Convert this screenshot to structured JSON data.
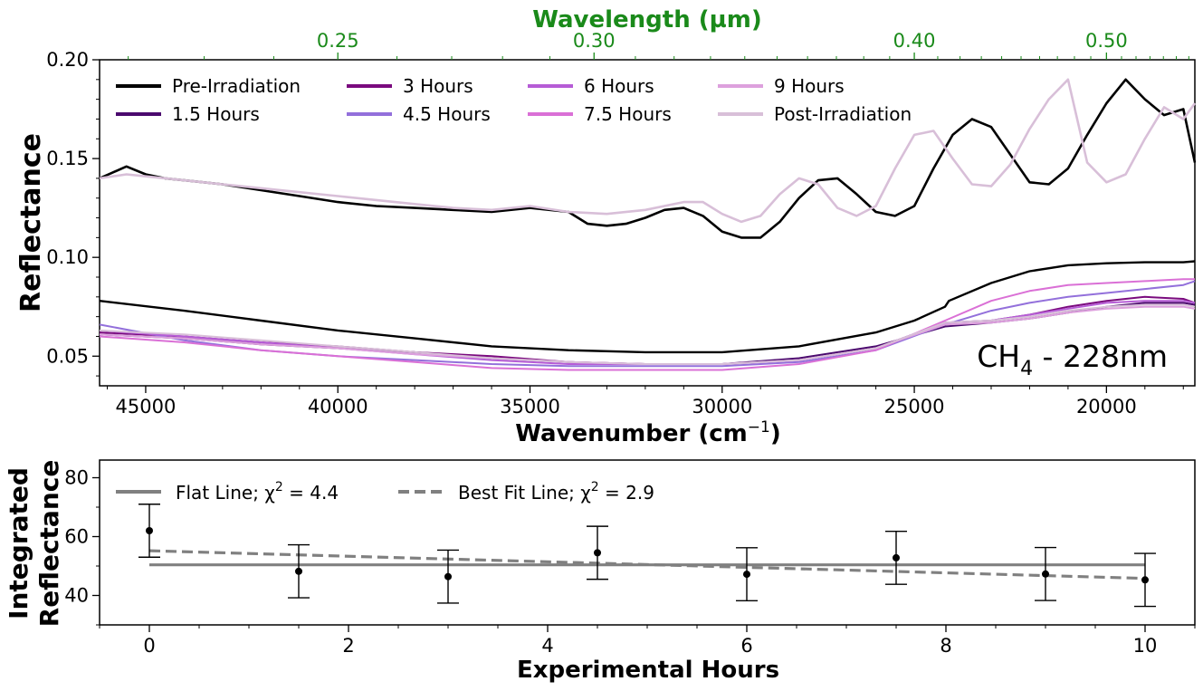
{
  "chart_data": [
    {
      "type": "line",
      "title": "",
      "xlabel": "Wavenumber (cm",
      "xlabel_sup": "−1",
      "xlabel_end": ")",
      "ylabel": "Reflectance",
      "top_axis_label": "Wavelength (µm)",
      "top_ticks": [
        {
          "label": "0.25",
          "um": 0.25
        },
        {
          "label": "0.30",
          "um": 0.3
        },
        {
          "label": "0.40",
          "um": 0.4
        },
        {
          "label": "0.50",
          "um": 0.5
        }
      ],
      "xlim": [
        46200,
        17700
      ],
      "ylim": [
        0.035,
        0.2
      ],
      "x_ticks": [
        45000,
        40000,
        35000,
        30000,
        25000,
        20000
      ],
      "y_ticks": [
        {
          "v": 0.05,
          "label": "0.05"
        },
        {
          "v": 0.1,
          "label": "0.10"
        },
        {
          "v": 0.15,
          "label": "0.15"
        },
        {
          "v": 0.2,
          "label": "0.20"
        }
      ],
      "annotation": {
        "main": "CH",
        "sub": "4",
        "rest": " - 228nm"
      },
      "legend_location": "top-left",
      "series": [
        {
          "name": "Pre-Irradiation",
          "color": "#000000",
          "role": "legend"
        },
        {
          "name": "1.5 Hours",
          "color": "#4b0a6e",
          "role": "legend"
        },
        {
          "name": "3 Hours",
          "color": "#7a0a7e",
          "role": "legend"
        },
        {
          "name": "4.5 Hours",
          "color": "#9370db",
          "role": "legend"
        },
        {
          "name": "6 Hours",
          "color": "#b65cd6",
          "role": "legend"
        },
        {
          "name": "7.5 Hours",
          "color": "#da70d6",
          "role": "legend"
        },
        {
          "name": "9 Hours",
          "color": "#dda0dd",
          "role": "legend"
        },
        {
          "name": "Post-Irradiation",
          "color": "#d8bfd8",
          "role": "legend"
        }
      ],
      "curves": [
        {
          "name": "pre-irradiation-offset",
          "color": "#000000",
          "width": 2.6,
          "x": [
            46200,
            45500,
            45000,
            44500,
            44000,
            43000,
            42000,
            41000,
            40000,
            39000,
            38000,
            37000,
            36000,
            35000,
            34000,
            33500,
            33000,
            32500,
            32000,
            31500,
            31000,
            30500,
            30000,
            29500,
            29000,
            28500,
            28000,
            27500,
            27000,
            26500,
            26000,
            25500,
            25000,
            24500,
            24000,
            23500,
            23000,
            22500,
            22000,
            21500,
            21000,
            20500,
            20000,
            19500,
            19000,
            18500,
            18000,
            17700
          ],
          "y": [
            0.14,
            0.146,
            0.142,
            0.14,
            0.139,
            0.137,
            0.134,
            0.131,
            0.128,
            0.126,
            0.125,
            0.124,
            0.123,
            0.125,
            0.123,
            0.117,
            0.116,
            0.117,
            0.12,
            0.124,
            0.125,
            0.121,
            0.113,
            0.11,
            0.11,
            0.118,
            0.13,
            0.139,
            0.14,
            0.132,
            0.123,
            0.121,
            0.126,
            0.145,
            0.162,
            0.17,
            0.166,
            0.152,
            0.138,
            0.137,
            0.145,
            0.162,
            0.178,
            0.19,
            0.18,
            0.172,
            0.175,
            0.148
          ]
        },
        {
          "name": "post-irradiation-offset",
          "color": "#d8bfd8",
          "width": 2.6,
          "x": [
            46200,
            45500,
            45000,
            44000,
            43000,
            42000,
            41000,
            40000,
            39000,
            38000,
            37000,
            36000,
            35000,
            34000,
            33000,
            32000,
            31000,
            30500,
            30000,
            29500,
            29000,
            28500,
            28000,
            27500,
            27000,
            26500,
            26000,
            25500,
            25000,
            24500,
            24000,
            23500,
            23000,
            22500,
            22000,
            21500,
            21000,
            20500,
            20000,
            19500,
            19000,
            18500,
            18000,
            17700
          ],
          "y": [
            0.14,
            0.142,
            0.141,
            0.139,
            0.137,
            0.135,
            0.133,
            0.131,
            0.129,
            0.127,
            0.125,
            0.124,
            0.126,
            0.123,
            0.122,
            0.124,
            0.128,
            0.128,
            0.122,
            0.118,
            0.121,
            0.132,
            0.14,
            0.137,
            0.125,
            0.121,
            0.126,
            0.145,
            0.162,
            0.164,
            0.15,
            0.137,
            0.136,
            0.147,
            0.165,
            0.18,
            0.19,
            0.148,
            0.138,
            0.142,
            0.16,
            0.176,
            0.17,
            0.178
          ]
        },
        {
          "name": "pre-irradiation",
          "color": "#000000",
          "width": 2.4,
          "x": [
            46200,
            44000,
            42000,
            40000,
            38000,
            36000,
            34000,
            32000,
            30000,
            28000,
            26000,
            25000,
            24200,
            24100,
            23000,
            22000,
            21000,
            20000,
            19000,
            18000,
            17700
          ],
          "y": [
            0.078,
            0.073,
            0.068,
            0.063,
            0.059,
            0.055,
            0.053,
            0.052,
            0.052,
            0.055,
            0.062,
            0.068,
            0.075,
            0.078,
            0.087,
            0.093,
            0.096,
            0.097,
            0.0975,
            0.0975,
            0.098
          ]
        },
        {
          "name": "1.5-hours",
          "color": "#4b0a6e",
          "width": 2.0,
          "x": [
            46200,
            44000,
            42000,
            40000,
            38000,
            36000,
            34000,
            32000,
            30000,
            28000,
            26000,
            24200,
            23000,
            22000,
            21000,
            20000,
            19000,
            18000,
            17700
          ],
          "y": [
            0.061,
            0.059,
            0.056,
            0.054,
            0.052,
            0.049,
            0.047,
            0.046,
            0.046,
            0.049,
            0.055,
            0.065,
            0.067,
            0.069,
            0.072,
            0.075,
            0.077,
            0.077,
            0.076
          ]
        },
        {
          "name": "3-hours",
          "color": "#7a0a7e",
          "width": 2.0,
          "x": [
            46200,
            44000,
            42000,
            40000,
            38000,
            36000,
            34000,
            32000,
            30000,
            28000,
            26000,
            24200,
            23000,
            22000,
            21000,
            20000,
            19000,
            18000,
            17700
          ],
          "y": [
            0.062,
            0.06,
            0.057,
            0.055,
            0.052,
            0.05,
            0.047,
            0.046,
            0.046,
            0.048,
            0.054,
            0.067,
            0.068,
            0.071,
            0.075,
            0.078,
            0.08,
            0.079,
            0.077
          ]
        },
        {
          "name": "4.5-hours",
          "color": "#9370db",
          "width": 2.0,
          "x": [
            46200,
            44000,
            42000,
            40000,
            38000,
            36000,
            34000,
            32000,
            30000,
            28000,
            26000,
            24200,
            23000,
            22000,
            21000,
            20000,
            19000,
            18000,
            17700
          ],
          "y": [
            0.066,
            0.058,
            0.053,
            0.05,
            0.048,
            0.046,
            0.045,
            0.045,
            0.045,
            0.047,
            0.053,
            0.066,
            0.073,
            0.077,
            0.08,
            0.082,
            0.084,
            0.086,
            0.088
          ]
        },
        {
          "name": "6-hours",
          "color": "#b65cd6",
          "width": 2.0,
          "x": [
            46200,
            44000,
            42000,
            40000,
            38000,
            36000,
            34000,
            32000,
            30000,
            28000,
            26000,
            24200,
            23000,
            22000,
            21000,
            20000,
            19000,
            18000,
            17700
          ],
          "y": [
            0.063,
            0.06,
            0.057,
            0.054,
            0.051,
            0.048,
            0.046,
            0.046,
            0.046,
            0.048,
            0.054,
            0.067,
            0.068,
            0.071,
            0.074,
            0.077,
            0.078,
            0.078,
            0.077
          ]
        },
        {
          "name": "7.5-hours",
          "color": "#da70d6",
          "width": 2.0,
          "x": [
            46200,
            44000,
            42000,
            40000,
            38000,
            36000,
            34000,
            32000,
            30000,
            28000,
            26000,
            24200,
            23000,
            22000,
            21000,
            20000,
            19000,
            18000,
            17700
          ],
          "y": [
            0.06,
            0.057,
            0.053,
            0.05,
            0.047,
            0.044,
            0.043,
            0.043,
            0.043,
            0.046,
            0.053,
            0.068,
            0.078,
            0.083,
            0.086,
            0.087,
            0.088,
            0.089,
            0.089
          ]
        },
        {
          "name": "9-hours",
          "color": "#dda0dd",
          "width": 2.0,
          "x": [
            46200,
            44000,
            42000,
            40000,
            38000,
            36000,
            34000,
            32000,
            30000,
            28000,
            26000,
            24200,
            23000,
            22000,
            21000,
            20000,
            19000,
            18000,
            17700
          ],
          "y": [
            0.061,
            0.059,
            0.056,
            0.054,
            0.051,
            0.049,
            0.047,
            0.046,
            0.046,
            0.048,
            0.054,
            0.066,
            0.067,
            0.069,
            0.072,
            0.074,
            0.075,
            0.075,
            0.074
          ]
        },
        {
          "name": "post-irradiation",
          "color": "#d8bfd8",
          "width": 2.0,
          "x": [
            46200,
            44000,
            42000,
            40000,
            38000,
            36000,
            34000,
            32000,
            30000,
            28000,
            26000,
            24200,
            23000,
            22000,
            21000,
            20000,
            19000,
            18000,
            17700
          ],
          "y": [
            0.063,
            0.061,
            0.058,
            0.055,
            0.052,
            0.049,
            0.047,
            0.046,
            0.046,
            0.048,
            0.054,
            0.067,
            0.068,
            0.07,
            0.073,
            0.075,
            0.076,
            0.076,
            0.075
          ]
        }
      ]
    },
    {
      "type": "scatter",
      "title": "",
      "xlabel": "Experimental Hours",
      "ylabel_line1": "Integrated",
      "ylabel_line2": "Reflectance",
      "xlim": [
        -0.5,
        10.5
      ],
      "ylim": [
        30,
        86
      ],
      "x_ticks": [
        0,
        2,
        4,
        6,
        8,
        10
      ],
      "y_ticks": [
        40,
        60,
        80
      ],
      "legend_location": "top-left",
      "points": [
        {
          "x": 0,
          "y": 62.0,
          "err": 9.0
        },
        {
          "x": 1.5,
          "y": 48.2,
          "err": 9.0
        },
        {
          "x": 3,
          "y": 46.4,
          "err": 9.0
        },
        {
          "x": 4.5,
          "y": 54.5,
          "err": 9.0
        },
        {
          "x": 6,
          "y": 47.2,
          "err": 9.0
        },
        {
          "x": 7.5,
          "y": 52.8,
          "err": 9.0
        },
        {
          "x": 9,
          "y": 47.3,
          "err": 9.0
        },
        {
          "x": 10,
          "y": 45.3,
          "err": 9.0
        }
      ],
      "lines": [
        {
          "name": "Flat Line; χ",
          "sup": "2",
          "tail": " = 4.4",
          "style": "solid",
          "color": "#808080",
          "x": [
            0,
            10
          ],
          "y": [
            50.4,
            50.4
          ]
        },
        {
          "name": "Best Fit Line; χ",
          "sup": "2",
          "tail": " = 2.9",
          "style": "dashed",
          "color": "#808080",
          "x": [
            0,
            10
          ],
          "y": [
            55.2,
            45.8
          ]
        }
      ]
    }
  ]
}
